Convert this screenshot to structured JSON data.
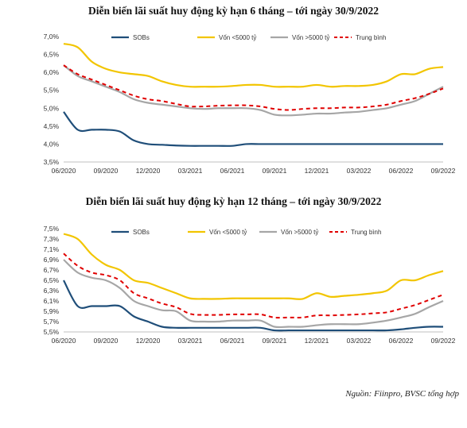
{
  "chart_data": [
    {
      "type": "line",
      "title": "Diễn biến lãi suất huy động kỳ hạn 6 tháng – tới ngày 30/9/2022",
      "xlabel": "",
      "ylabel": "",
      "x": [
        "06/2020",
        "07/2020",
        "08/2020",
        "09/2020",
        "10/2020",
        "11/2020",
        "12/2020",
        "01/2021",
        "02/2021",
        "03/2021",
        "04/2021",
        "05/2021",
        "06/2021",
        "07/2021",
        "08/2021",
        "09/2021",
        "10/2021",
        "11/2021",
        "12/2021",
        "01/2022",
        "02/2022",
        "03/2022",
        "04/2022",
        "05/2022",
        "06/2022",
        "07/2022",
        "08/2022",
        "09/2022"
      ],
      "xticks": [
        "06/2020",
        "09/2020",
        "12/2020",
        "03/2021",
        "06/2021",
        "09/2021",
        "12/2021",
        "03/2022",
        "06/2022",
        "09/2022"
      ],
      "ylim": [
        3.5,
        7.0
      ],
      "yticks": [
        "3,5%",
        "4,0%",
        "4,5%",
        "5,0%",
        "5,5%",
        "6,0%",
        "6,5%",
        "7,0%"
      ],
      "ytick_values": [
        3.5,
        4.0,
        4.5,
        5.0,
        5.5,
        6.0,
        6.5,
        7.0
      ],
      "legend_position": "top",
      "series": [
        {
          "name": "SOBs",
          "color": "#1f4e79",
          "dash": "solid",
          "values": [
            4.9,
            4.4,
            4.4,
            4.4,
            4.35,
            4.1,
            4.0,
            3.98,
            3.96,
            3.95,
            3.95,
            3.95,
            3.95,
            4.0,
            4.0,
            4.0,
            4.0,
            4.0,
            4.0,
            4.0,
            4.0,
            4.0,
            4.0,
            4.0,
            4.0,
            4.0,
            4.0,
            4.0
          ]
        },
        {
          "name": "Vốn <5000 tỷ",
          "color": "#f2c500",
          "dash": "solid",
          "values": [
            6.8,
            6.7,
            6.3,
            6.1,
            6.0,
            5.95,
            5.9,
            5.75,
            5.65,
            5.6,
            5.6,
            5.6,
            5.62,
            5.65,
            5.65,
            5.6,
            5.6,
            5.6,
            5.65,
            5.6,
            5.62,
            5.62,
            5.65,
            5.75,
            5.95,
            5.95,
            6.1,
            6.15
          ]
        },
        {
          "name": "Vốn >5000 tỷ",
          "color": "#a6a6a6",
          "dash": "solid",
          "values": [
            6.2,
            5.9,
            5.75,
            5.6,
            5.45,
            5.25,
            5.15,
            5.1,
            5.05,
            5.0,
            4.98,
            5.0,
            5.0,
            5.0,
            4.95,
            4.82,
            4.8,
            4.82,
            4.85,
            4.85,
            4.88,
            4.9,
            4.95,
            5.0,
            5.1,
            5.2,
            5.4,
            5.6
          ]
        },
        {
          "name": "Trung bình",
          "color": "#e00000",
          "dash": "dashed",
          "values": [
            6.2,
            5.95,
            5.8,
            5.65,
            5.5,
            5.35,
            5.25,
            5.2,
            5.12,
            5.05,
            5.05,
            5.07,
            5.08,
            5.08,
            5.05,
            4.98,
            4.95,
            4.98,
            5.0,
            5.0,
            5.02,
            5.02,
            5.05,
            5.1,
            5.2,
            5.28,
            5.4,
            5.55
          ]
        }
      ]
    },
    {
      "type": "line",
      "title": "Diễn biến lãi suất huy động kỳ hạn 12 tháng – tới ngày 30/9/2022",
      "xlabel": "",
      "ylabel": "",
      "x": [
        "06/2020",
        "07/2020",
        "08/2020",
        "09/2020",
        "10/2020",
        "11/2020",
        "12/2020",
        "01/2021",
        "02/2021",
        "03/2021",
        "04/2021",
        "05/2021",
        "06/2021",
        "07/2021",
        "08/2021",
        "09/2021",
        "10/2021",
        "11/2021",
        "12/2021",
        "01/2022",
        "02/2022",
        "03/2022",
        "04/2022",
        "05/2022",
        "06/2022",
        "07/2022",
        "08/2022",
        "09/2022"
      ],
      "xticks": [
        "06/2020",
        "09/2020",
        "12/2020",
        "03/2021",
        "06/2021",
        "09/2021",
        "12/2021",
        "03/2022",
        "06/2022",
        "09/2022"
      ],
      "ylim": [
        5.5,
        7.5
      ],
      "yticks": [
        "5,5%",
        "5,7%",
        "5,9%",
        "6,1%",
        "6,3%",
        "6,5%",
        "6,7%",
        "6,9%",
        "7,1%",
        "7,3%",
        "7,5%"
      ],
      "ytick_values": [
        5.5,
        5.7,
        5.9,
        6.1,
        6.3,
        6.5,
        6.7,
        6.9,
        7.1,
        7.3,
        7.5
      ],
      "legend_position": "top",
      "series": [
        {
          "name": "SOBs",
          "color": "#1f4e79",
          "dash": "solid",
          "values": [
            6.5,
            6.0,
            6.0,
            6.0,
            6.0,
            5.8,
            5.7,
            5.6,
            5.58,
            5.58,
            5.58,
            5.58,
            5.58,
            5.58,
            5.58,
            5.53,
            5.53,
            5.53,
            5.53,
            5.53,
            5.53,
            5.53,
            5.53,
            5.53,
            5.55,
            5.58,
            5.6,
            5.6
          ]
        },
        {
          "name": "Vốn <5000 tỷ",
          "color": "#f2c500",
          "dash": "solid",
          "values": [
            7.4,
            7.3,
            7.0,
            6.8,
            6.7,
            6.5,
            6.45,
            6.35,
            6.25,
            6.15,
            6.14,
            6.14,
            6.15,
            6.15,
            6.15,
            6.15,
            6.15,
            6.14,
            6.25,
            6.18,
            6.2,
            6.22,
            6.25,
            6.3,
            6.5,
            6.5,
            6.6,
            6.68
          ]
        },
        {
          "name": "Vốn >5000 tỷ",
          "color": "#a6a6a6",
          "dash": "solid",
          "values": [
            6.9,
            6.65,
            6.55,
            6.5,
            6.35,
            6.1,
            6.0,
            5.92,
            5.9,
            5.72,
            5.7,
            5.7,
            5.72,
            5.72,
            5.72,
            5.6,
            5.6,
            5.6,
            5.63,
            5.65,
            5.65,
            5.65,
            5.68,
            5.72,
            5.78,
            5.85,
            5.98,
            6.1
          ]
        },
        {
          "name": "Trung bình",
          "color": "#e00000",
          "dash": "dashed",
          "values": [
            7.02,
            6.78,
            6.65,
            6.6,
            6.5,
            6.25,
            6.15,
            6.05,
            5.98,
            5.85,
            5.83,
            5.83,
            5.84,
            5.84,
            5.84,
            5.78,
            5.78,
            5.78,
            5.82,
            5.82,
            5.83,
            5.84,
            5.86,
            5.88,
            5.95,
            6.02,
            6.12,
            6.22
          ]
        }
      ]
    }
  ],
  "source_note": "Nguồn: Fiinpro, BVSC tổng hợp"
}
